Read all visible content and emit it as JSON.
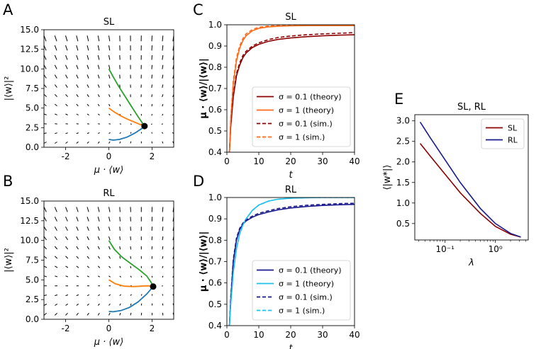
{
  "figure": {
    "panel_letters": [
      "A",
      "B",
      "C",
      "D",
      "E"
    ]
  },
  "chart_data": [
    {
      "id": "A",
      "type": "scatter",
      "title": "SL",
      "xlabel": "μ · ⟨w⟩",
      "ylabel": "|⟨w⟩|²",
      "xlim": [
        -3,
        3
      ],
      "ylim": [
        0,
        15
      ],
      "xticks": [
        -2,
        0,
        2
      ],
      "yticks": [
        0.0,
        2.5,
        5.0,
        7.5,
        10.0,
        12.5,
        15.0
      ],
      "ytick_labels": [
        "0.0",
        "2.5",
        "5.0",
        "7.5",
        "10.0",
        "12.5",
        "15.0"
      ],
      "fixed_point": [
        1.65,
        2.7
      ],
      "series": [
        {
          "name": "trajectory-green",
          "color": "#2ca02c",
          "x": [
            0,
            0.2,
            0.45,
            0.75,
            1.05,
            1.35,
            1.55,
            1.65
          ],
          "y": [
            10,
            9.0,
            7.8,
            6.5,
            5.2,
            3.9,
            3.1,
            2.7
          ]
        },
        {
          "name": "trajectory-orange",
          "color": "#ff7f0e",
          "x": [
            0,
            0.25,
            0.55,
            0.85,
            1.15,
            1.45,
            1.65
          ],
          "y": [
            5,
            4.5,
            4.0,
            3.6,
            3.25,
            2.9,
            2.7
          ]
        },
        {
          "name": "trajectory-blue",
          "color": "#1f77b4",
          "x": [
            0,
            0.2,
            0.5,
            0.85,
            1.2,
            1.5,
            1.65
          ],
          "y": [
            1,
            0.9,
            1.0,
            1.3,
            1.8,
            2.35,
            2.7
          ]
        }
      ]
    },
    {
      "id": "B",
      "type": "scatter",
      "title": "RL",
      "xlabel": "μ · ⟨w⟩",
      "ylabel": "|⟨w⟩|²",
      "xlim": [
        -3,
        3
      ],
      "ylim": [
        0,
        15
      ],
      "xticks": [
        -2,
        0,
        2
      ],
      "yticks": [
        0.0,
        2.5,
        5.0,
        7.5,
        10.0,
        12.5,
        15.0
      ],
      "ytick_labels": [
        "0.0",
        "2.5",
        "5.0",
        "7.5",
        "10.0",
        "12.5",
        "15.0"
      ],
      "fixed_point": [
        2.05,
        4.15
      ],
      "series": [
        {
          "name": "trajectory-green",
          "color": "#2ca02c",
          "x": [
            0,
            0.25,
            0.6,
            1.0,
            1.4,
            1.75,
            1.95,
            2.05
          ],
          "y": [
            10,
            8.9,
            7.9,
            7.1,
            6.3,
            5.5,
            4.7,
            4.15
          ]
        },
        {
          "name": "trajectory-orange",
          "color": "#ff7f0e",
          "x": [
            0,
            0.3,
            0.7,
            1.1,
            1.5,
            1.85,
            2.05
          ],
          "y": [
            5,
            4.5,
            4.2,
            4.15,
            4.2,
            4.25,
            4.15
          ]
        },
        {
          "name": "trajectory-blue",
          "color": "#1f77b4",
          "x": [
            0,
            0.2,
            0.55,
            0.95,
            1.35,
            1.75,
            2.05
          ],
          "y": [
            1,
            0.95,
            1.1,
            1.5,
            2.2,
            3.2,
            4.15
          ]
        }
      ]
    },
    {
      "id": "C",
      "type": "line",
      "title": "SL",
      "xlabel": "t",
      "ylabel": "μ · ⟨w⟩/|⟨w⟩|",
      "xlim": [
        0,
        40
      ],
      "ylim": [
        0.4,
        1.0
      ],
      "xticks": [
        0,
        10,
        20,
        30,
        40
      ],
      "yticks": [
        0.4,
        0.5,
        0.6,
        0.7,
        0.8,
        0.9,
        1.0
      ],
      "legend_position": "lower-right",
      "series": [
        {
          "name": "σ = 0.1 (theory)",
          "color": "#8b0000",
          "style": "solid",
          "x": [
            0.8,
            1.2,
            2,
            3,
            4,
            5,
            6,
            8,
            10,
            13,
            16,
            20,
            25,
            30,
            35,
            40
          ],
          "y": [
            0.4,
            0.52,
            0.66,
            0.76,
            0.81,
            0.845,
            0.867,
            0.893,
            0.908,
            0.922,
            0.931,
            0.938,
            0.944,
            0.948,
            0.951,
            0.953
          ]
        },
        {
          "name": "σ = 1 (theory)",
          "color": "#ff6a1a",
          "style": "solid",
          "x": [
            0.8,
            1.2,
            2,
            3,
            4,
            5,
            6,
            8,
            10,
            13,
            16,
            20,
            25,
            30,
            35,
            40
          ],
          "y": [
            0.4,
            0.55,
            0.72,
            0.83,
            0.89,
            0.925,
            0.948,
            0.972,
            0.983,
            0.99,
            0.993,
            0.995,
            0.996,
            0.996,
            0.996,
            0.996
          ]
        },
        {
          "name": "σ = 0.1 (sim.)",
          "color": "#8b0000",
          "style": "dashed",
          "x": [
            0.8,
            1.2,
            2,
            3,
            4,
            5,
            6,
            8,
            10,
            13,
            16,
            20,
            25,
            30,
            35,
            40
          ],
          "y": [
            0.4,
            0.53,
            0.67,
            0.77,
            0.82,
            0.855,
            0.875,
            0.9,
            0.915,
            0.93,
            0.94,
            0.947,
            0.953,
            0.957,
            0.96,
            0.963
          ]
        },
        {
          "name": "σ = 1 (sim.)",
          "color": "#ff6a1a",
          "style": "dashed",
          "x": [
            0.8,
            1.2,
            2,
            3,
            4,
            5,
            6,
            8,
            10,
            13,
            16,
            20,
            25,
            30,
            35,
            40
          ],
          "y": [
            0.4,
            0.56,
            0.735,
            0.845,
            0.9,
            0.935,
            0.957,
            0.978,
            0.988,
            0.994,
            0.996,
            0.998,
            0.998,
            0.998,
            0.998,
            0.998
          ]
        }
      ]
    },
    {
      "id": "D",
      "type": "line",
      "title": "RL",
      "xlabel": "t",
      "ylabel": "μ · ⟨w⟩/|⟨w⟩|",
      "xlim": [
        0,
        40
      ],
      "ylim": [
        0.4,
        1.0
      ],
      "xticks": [
        0,
        10,
        20,
        30,
        40
      ],
      "yticks": [
        0.4,
        0.5,
        0.6,
        0.7,
        0.8,
        0.9,
        1.0
      ],
      "legend_position": "lower-right",
      "series": [
        {
          "name": "σ = 0.1 (theory)",
          "color": "#1a1a8c",
          "style": "solid",
          "x": [
            0.8,
            1.2,
            2,
            3,
            4,
            5,
            6,
            8,
            10,
            13,
            16,
            20,
            25,
            30,
            35,
            40
          ],
          "y": [
            0.4,
            0.52,
            0.7,
            0.8,
            0.85,
            0.875,
            0.89,
            0.908,
            0.92,
            0.932,
            0.942,
            0.951,
            0.958,
            0.963,
            0.966,
            0.968
          ]
        },
        {
          "name": "σ = 1 (theory)",
          "color": "#1ec0ee",
          "style": "solid",
          "x": [
            0.8,
            1.2,
            2,
            3,
            4,
            5,
            6,
            8,
            10,
            13,
            16,
            20,
            25,
            30,
            35,
            40
          ],
          "y": [
            0.4,
            0.5,
            0.65,
            0.76,
            0.83,
            0.87,
            0.9,
            0.94,
            0.965,
            0.983,
            0.992,
            0.997,
            0.999,
            1.0,
            1.0,
            1.0
          ]
        },
        {
          "name": "σ = 0.1 (sim.)",
          "color": "#1a1a8c",
          "style": "dashed",
          "x": [
            0.8,
            1.2,
            2,
            3,
            4,
            5,
            6,
            8,
            10,
            13,
            16,
            20,
            25,
            30,
            35,
            40
          ],
          "y": [
            0.4,
            0.53,
            0.71,
            0.81,
            0.855,
            0.88,
            0.895,
            0.913,
            0.926,
            0.938,
            0.948,
            0.957,
            0.964,
            0.968,
            0.971,
            0.973
          ]
        },
        {
          "name": "σ = 1 (sim.)",
          "color": "#1ec0ee",
          "style": "dashed",
          "x": [
            0.8,
            1.2,
            2,
            3,
            4,
            5,
            6,
            8,
            10,
            13,
            16,
            20,
            25,
            30,
            35,
            40
          ],
          "y": [
            0.4,
            0.5,
            0.65,
            0.76,
            0.83,
            0.87,
            0.9,
            0.94,
            0.965,
            0.983,
            0.992,
            0.997,
            0.999,
            1.0,
            1.0,
            1.0
          ]
        }
      ]
    },
    {
      "id": "E",
      "type": "line",
      "title": "SL, RL",
      "xlabel": "λ",
      "ylabel": "⟨|w*|⟩",
      "xscale": "log",
      "xlim": [
        0.025,
        4.5
      ],
      "ylim": [
        0.1,
        3.15
      ],
      "xtick_values": [
        0.1,
        1.0
      ],
      "xtick_labels": [
        "10⁻¹",
        "10⁰"
      ],
      "yticks": [
        0.5,
        1.0,
        1.5,
        2.0,
        2.5,
        3.0
      ],
      "ytick_labels": [
        "0.5",
        "1.0",
        "1.5",
        "2.0",
        "2.5",
        "3.0"
      ],
      "legend_position": "top-right",
      "series": [
        {
          "name": "SL",
          "color": "#8b0000",
          "style": "solid",
          "x": [
            0.032,
            0.05,
            0.1,
            0.2,
            0.5,
            1.0,
            2.0,
            3.2
          ],
          "y": [
            2.45,
            2.15,
            1.7,
            1.25,
            0.75,
            0.43,
            0.24,
            0.17
          ]
        },
        {
          "name": "RL",
          "color": "#1a1a8c",
          "style": "solid",
          "x": [
            0.032,
            0.05,
            0.1,
            0.2,
            0.5,
            1.0,
            2.0,
            3.2
          ],
          "y": [
            2.97,
            2.6,
            2.05,
            1.5,
            0.87,
            0.5,
            0.26,
            0.17
          ]
        }
      ]
    }
  ]
}
